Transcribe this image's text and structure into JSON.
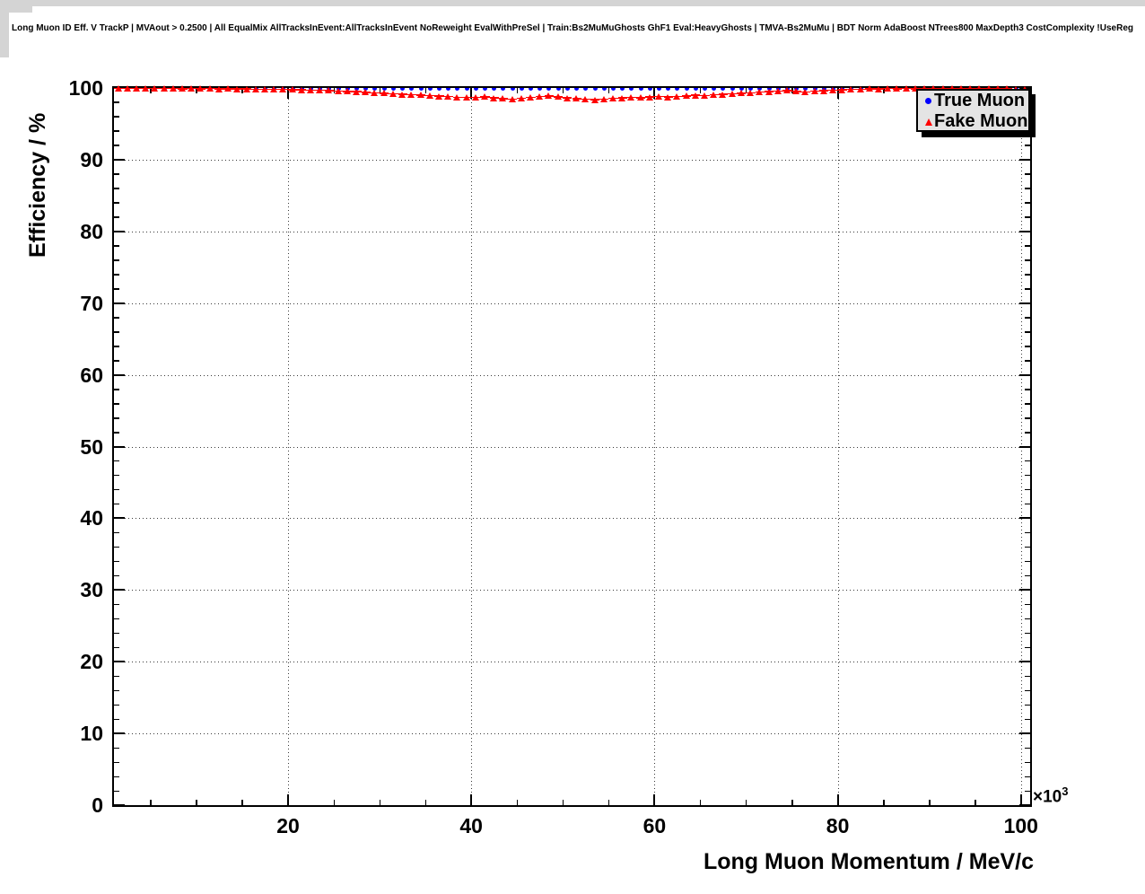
{
  "page": {
    "title": "Long Muon ID Eff. V TrackP | MVAout > 0.2500 | All EqualMix AllTracksInEvent:AllTracksInEvent NoReweight EvalWithPreSel | Train:Bs2MuMuGhosts GhF1 Eval:HeavyGhosts | TMVA-Bs2MuMu | BDT Norm AdaBoost NTrees800 MaxDepth3 CostComplexity !UseReg"
  },
  "colors": {
    "true_muon": "#0000ff",
    "fake_muon": "#ff0000",
    "axis": "#000000",
    "grid": "#3a3a3a",
    "legend_bg": "#e4e4e4"
  },
  "legend": {
    "entries": [
      {
        "label": "True Muon",
        "marker": "circle-icon",
        "color": "#0000ff"
      },
      {
        "label": "Fake Muon",
        "marker": "triangle-icon",
        "color": "#ff0000"
      }
    ]
  },
  "chart_data": {
    "type": "scatter",
    "title": "Long Muon ID Eff. V TrackP | MVAout > 0.2500 | All EqualMix AllTracksInEvent:AllTracksInEvent NoReweight EvalWithPreSel | Train:Bs2MuMuGhosts GhF1 Eval:HeavyGhosts | TMVA-Bs2MuMu | BDT Norm AdaBoost NTrees800 MaxDepth3 CostComplexity !UseReg",
    "xlabel": "Long Muon Momentum / MeV/c",
    "ylabel": "Efficiency / %",
    "grid": true,
    "legend_position": "top-right",
    "x_axis": {
      "min": 1,
      "max": 101,
      "major_ticks": [
        20,
        40,
        60,
        80,
        100
      ],
      "minor_step": 5,
      "multiplier_base": "×10",
      "multiplier_exp": "3"
    },
    "y_axis": {
      "min": 0,
      "max": 100,
      "major_ticks": [
        0,
        10,
        20,
        30,
        40,
        50,
        60,
        70,
        80,
        90,
        100
      ],
      "minor_step": 2
    },
    "x_bin_halfwidth": 0.5,
    "x": [
      1.5,
      2.5,
      3.5,
      4.5,
      5.5,
      6.5,
      7.5,
      8.5,
      9.5,
      10.5,
      11.5,
      12.5,
      13.5,
      14.5,
      15.5,
      16.5,
      17.5,
      18.5,
      19.5,
      20.5,
      21.5,
      22.5,
      23.5,
      24.5,
      25.5,
      26.5,
      27.5,
      28.5,
      29.5,
      30.5,
      31.5,
      32.5,
      33.5,
      34.5,
      35.5,
      36.5,
      37.5,
      38.5,
      39.5,
      40.5,
      41.5,
      42.5,
      43.5,
      44.5,
      45.5,
      46.5,
      47.5,
      48.5,
      49.5,
      50.5,
      51.5,
      52.5,
      53.5,
      54.5,
      55.5,
      56.5,
      57.5,
      58.5,
      59.5,
      60.5,
      61.5,
      62.5,
      63.5,
      64.5,
      65.5,
      66.5,
      67.5,
      68.5,
      69.5,
      70.5,
      71.5,
      72.5,
      73.5,
      74.5,
      75.5,
      76.5,
      77.5,
      78.5,
      79.5,
      80.5,
      81.5,
      82.5,
      83.5,
      84.5,
      85.5,
      86.5,
      87.5,
      88.5,
      89.5,
      90.5,
      91.5,
      92.5,
      93.5,
      94.5,
      95.5,
      96.5,
      97.5,
      98.5,
      99.5,
      100.5
    ],
    "series": [
      {
        "name": "True Muon",
        "marker": "circle",
        "color": "#0000ff",
        "values": [
          100,
          100,
          100,
          100,
          100,
          100,
          100,
          100,
          100,
          100,
          100,
          100,
          100,
          100,
          100,
          100,
          100,
          100,
          100,
          100,
          100,
          100,
          100,
          100,
          100,
          100,
          100,
          100,
          100,
          100,
          100,
          100,
          100,
          100,
          100,
          100,
          100,
          100,
          100,
          100,
          100,
          100,
          100,
          100,
          100,
          100,
          100,
          100,
          100,
          100,
          100,
          100,
          100,
          100,
          100,
          100,
          100,
          100,
          100,
          100,
          100,
          100,
          100,
          100,
          100,
          100,
          100,
          100,
          100,
          100,
          100,
          100,
          100,
          100,
          100,
          100,
          100,
          100,
          100,
          100,
          100,
          100,
          100,
          100,
          100,
          100,
          100,
          100,
          100,
          100,
          100,
          100,
          100,
          100,
          100,
          100,
          100,
          100,
          100,
          100
        ]
      },
      {
        "name": "Fake Muon",
        "marker": "triangle",
        "color": "#ff0000",
        "values": [
          99.97,
          99.94,
          99.96,
          99.93,
          99.95,
          99.92,
          99.94,
          99.9,
          99.93,
          99.89,
          99.91,
          99.87,
          99.89,
          99.85,
          99.87,
          99.83,
          99.84,
          99.8,
          99.81,
          99.76,
          99.72,
          99.68,
          99.7,
          99.63,
          99.58,
          99.52,
          99.47,
          99.4,
          99.33,
          99.27,
          99.2,
          99.12,
          99.05,
          99.0,
          98.93,
          98.85,
          98.78,
          98.7,
          98.66,
          98.71,
          98.75,
          98.62,
          98.52,
          98.45,
          98.56,
          98.67,
          98.8,
          98.9,
          98.76,
          98.61,
          98.5,
          98.41,
          98.36,
          98.46,
          98.55,
          98.61,
          98.7,
          98.64,
          98.74,
          98.79,
          98.74,
          98.84,
          98.89,
          98.99,
          98.94,
          99.04,
          99.1,
          99.19,
          99.25,
          99.34,
          99.41,
          99.49,
          99.56,
          99.64,
          99.51,
          99.46,
          99.54,
          99.61,
          99.69,
          99.74,
          99.79,
          99.84,
          99.89,
          99.87,
          99.91,
          99.89,
          99.93,
          99.9,
          99.92,
          99.94,
          99.91,
          99.95,
          99.93,
          99.96,
          99.94,
          99.95,
          99.92,
          99.89,
          99.84,
          99.77
        ]
      }
    ]
  }
}
